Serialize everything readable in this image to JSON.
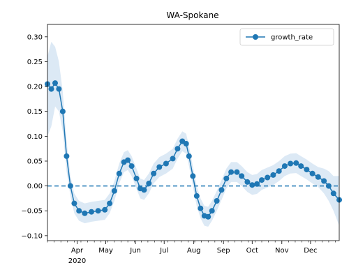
{
  "chart_data": {
    "type": "line",
    "title": "WA-Spokane",
    "xlabel": "",
    "ylabel": "",
    "ylim": [
      -0.11,
      0.325
    ],
    "y_ticks": [
      -0.1,
      -0.05,
      0.0,
      0.05,
      0.1,
      0.15,
      0.2,
      0.25,
      0.3
    ],
    "y_tick_labels": [
      "−0.10",
      "−0.05",
      "0.00",
      "0.05",
      "0.10",
      "0.15",
      "0.20",
      "0.25",
      "0.30"
    ],
    "x_range": [
      "2020-03-01",
      "2020-12-31"
    ],
    "x_ticks": [
      {
        "date": "2020-04-01",
        "label": "Apr",
        "year_label": "2020"
      },
      {
        "date": "2020-05-01",
        "label": "May",
        "year_label": ""
      },
      {
        "date": "2020-06-01",
        "label": "Jun",
        "year_label": ""
      },
      {
        "date": "2020-07-01",
        "label": "Jul",
        "year_label": ""
      },
      {
        "date": "2020-08-01",
        "label": "Aug",
        "year_label": ""
      },
      {
        "date": "2020-09-01",
        "label": "Sep",
        "year_label": ""
      },
      {
        "date": "2020-10-01",
        "label": "Oct",
        "year_label": ""
      },
      {
        "date": "2020-11-01",
        "label": "Nov",
        "year_label": ""
      },
      {
        "date": "2020-12-01",
        "label": "Dec",
        "year_label": ""
      }
    ],
    "reference_line": {
      "y": 0.0,
      "style": "dashed"
    },
    "legend_position": "top-right",
    "grid": false,
    "series": [
      {
        "name": "growth_rate",
        "color": "#1f77b4",
        "band_color": "#dce9f5",
        "marker": "circle",
        "points": [
          {
            "x": "2020-03-01",
            "y": 0.205,
            "lo": 0.1,
            "hi": 0.26
          },
          {
            "x": "2020-03-05",
            "y": 0.195,
            "lo": 0.12,
            "hi": 0.29
          },
          {
            "x": "2020-03-09",
            "y": 0.207,
            "lo": 0.16,
            "hi": 0.28
          },
          {
            "x": "2020-03-13",
            "y": 0.195,
            "lo": 0.15,
            "hi": 0.25
          },
          {
            "x": "2020-03-17",
            "y": 0.15,
            "lo": 0.11,
            "hi": 0.19
          },
          {
            "x": "2020-03-21",
            "y": 0.06,
            "lo": 0.03,
            "hi": 0.09
          },
          {
            "x": "2020-03-25",
            "y": 0.0,
            "lo": -0.02,
            "hi": 0.02
          },
          {
            "x": "2020-03-29",
            "y": -0.035,
            "lo": -0.055,
            "hi": -0.015
          },
          {
            "x": "2020-04-03",
            "y": -0.05,
            "lo": -0.07,
            "hi": -0.03
          },
          {
            "x": "2020-04-09",
            "y": -0.055,
            "lo": -0.075,
            "hi": -0.035
          },
          {
            "x": "2020-04-16",
            "y": -0.052,
            "lo": -0.072,
            "hi": -0.032
          },
          {
            "x": "2020-04-23",
            "y": -0.05,
            "lo": -0.07,
            "hi": -0.03
          },
          {
            "x": "2020-04-30",
            "y": -0.048,
            "lo": -0.068,
            "hi": -0.028
          },
          {
            "x": "2020-05-05",
            "y": -0.035,
            "lo": -0.055,
            "hi": -0.015
          },
          {
            "x": "2020-05-10",
            "y": -0.01,
            "lo": -0.03,
            "hi": 0.01
          },
          {
            "x": "2020-05-15",
            "y": 0.025,
            "lo": 0.005,
            "hi": 0.045
          },
          {
            "x": "2020-05-20",
            "y": 0.048,
            "lo": 0.028,
            "hi": 0.068
          },
          {
            "x": "2020-05-24",
            "y": 0.052,
            "lo": 0.032,
            "hi": 0.072
          },
          {
            "x": "2020-05-28",
            "y": 0.04,
            "lo": 0.02,
            "hi": 0.06
          },
          {
            "x": "2020-06-02",
            "y": 0.015,
            "lo": -0.005,
            "hi": 0.035
          },
          {
            "x": "2020-06-06",
            "y": -0.005,
            "lo": -0.025,
            "hi": 0.015
          },
          {
            "x": "2020-06-10",
            "y": -0.008,
            "lo": -0.028,
            "hi": 0.012
          },
          {
            "x": "2020-06-15",
            "y": 0.005,
            "lo": -0.015,
            "hi": 0.025
          },
          {
            "x": "2020-06-20",
            "y": 0.025,
            "lo": 0.005,
            "hi": 0.045
          },
          {
            "x": "2020-06-26",
            "y": 0.038,
            "lo": 0.018,
            "hi": 0.058
          },
          {
            "x": "2020-07-03",
            "y": 0.045,
            "lo": 0.025,
            "hi": 0.065
          },
          {
            "x": "2020-07-10",
            "y": 0.055,
            "lo": 0.035,
            "hi": 0.075
          },
          {
            "x": "2020-07-15",
            "y": 0.075,
            "lo": 0.055,
            "hi": 0.095
          },
          {
            "x": "2020-07-20",
            "y": 0.09,
            "lo": 0.07,
            "hi": 0.11
          },
          {
            "x": "2020-07-24",
            "y": 0.085,
            "lo": 0.065,
            "hi": 0.105
          },
          {
            "x": "2020-07-27",
            "y": 0.06,
            "lo": 0.04,
            "hi": 0.08
          },
          {
            "x": "2020-07-31",
            "y": 0.02,
            "lo": 0.0,
            "hi": 0.04
          },
          {
            "x": "2020-08-04",
            "y": -0.02,
            "lo": -0.04,
            "hi": 0.0
          },
          {
            "x": "2020-08-08",
            "y": -0.045,
            "lo": -0.065,
            "hi": -0.025
          },
          {
            "x": "2020-08-12",
            "y": -0.06,
            "lo": -0.08,
            "hi": -0.04
          },
          {
            "x": "2020-08-16",
            "y": -0.062,
            "lo": -0.082,
            "hi": -0.042
          },
          {
            "x": "2020-08-20",
            "y": -0.05,
            "lo": -0.07,
            "hi": -0.03
          },
          {
            "x": "2020-08-25",
            "y": -0.03,
            "lo": -0.05,
            "hi": -0.01
          },
          {
            "x": "2020-08-30",
            "y": -0.008,
            "lo": -0.028,
            "hi": 0.012
          },
          {
            "x": "2020-09-04",
            "y": 0.015,
            "lo": -0.005,
            "hi": 0.035
          },
          {
            "x": "2020-09-09",
            "y": 0.028,
            "lo": 0.008,
            "hi": 0.048
          },
          {
            "x": "2020-09-15",
            "y": 0.028,
            "lo": 0.008,
            "hi": 0.048
          },
          {
            "x": "2020-09-20",
            "y": 0.02,
            "lo": 0.0,
            "hi": 0.04
          },
          {
            "x": "2020-09-26",
            "y": 0.008,
            "lo": -0.012,
            "hi": 0.028
          },
          {
            "x": "2020-10-01",
            "y": 0.002,
            "lo": -0.018,
            "hi": 0.022
          },
          {
            "x": "2020-10-06",
            "y": 0.004,
            "lo": -0.016,
            "hi": 0.024
          },
          {
            "x": "2020-10-11",
            "y": 0.012,
            "lo": -0.008,
            "hi": 0.032
          },
          {
            "x": "2020-10-17",
            "y": 0.017,
            "lo": -0.003,
            "hi": 0.037
          },
          {
            "x": "2020-10-23",
            "y": 0.022,
            "lo": 0.002,
            "hi": 0.042
          },
          {
            "x": "2020-10-29",
            "y": 0.03,
            "lo": 0.01,
            "hi": 0.05
          },
          {
            "x": "2020-11-04",
            "y": 0.04,
            "lo": 0.02,
            "hi": 0.06
          },
          {
            "x": "2020-11-10",
            "y": 0.045,
            "lo": 0.025,
            "hi": 0.065
          },
          {
            "x": "2020-11-16",
            "y": 0.046,
            "lo": 0.026,
            "hi": 0.066
          },
          {
            "x": "2020-11-21",
            "y": 0.04,
            "lo": 0.02,
            "hi": 0.06
          },
          {
            "x": "2020-11-27",
            "y": 0.033,
            "lo": 0.013,
            "hi": 0.053
          },
          {
            "x": "2020-12-03",
            "y": 0.025,
            "lo": 0.005,
            "hi": 0.045
          },
          {
            "x": "2020-12-09",
            "y": 0.018,
            "lo": -0.002,
            "hi": 0.038
          },
          {
            "x": "2020-12-15",
            "y": 0.01,
            "lo": -0.015,
            "hi": 0.035
          },
          {
            "x": "2020-12-20",
            "y": 0.0,
            "lo": -0.03,
            "hi": 0.03
          },
          {
            "x": "2020-12-25",
            "y": -0.015,
            "lo": -0.05,
            "hi": 0.02
          },
          {
            "x": "2020-12-31",
            "y": -0.028,
            "lo": -0.08,
            "hi": 0.02
          }
        ]
      }
    ]
  }
}
